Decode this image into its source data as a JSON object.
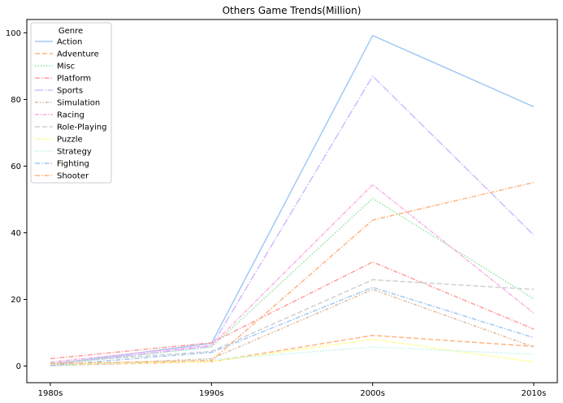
{
  "chart_data": {
    "type": "line",
    "title": "Others Game Trends(Million)",
    "xlabel": "",
    "ylabel": "",
    "categories": [
      "1980s",
      "1990s",
      "2000s",
      "2010s"
    ],
    "ylim": [
      -5,
      104
    ],
    "yticks": [
      0,
      20,
      40,
      60,
      80,
      100
    ],
    "grid": false,
    "legend": {
      "title": "Genre",
      "placement": "top-left"
    },
    "series": [
      {
        "name": "Action",
        "values": [
          0.5,
          6.8,
          99.2,
          77.8
        ],
        "color": "#a1c9f4",
        "dash": ""
      },
      {
        "name": "Adventure",
        "values": [
          0.2,
          1.3,
          9.2,
          5.9
        ],
        "color": "#ffb482",
        "dash": "6 3"
      },
      {
        "name": "Misc",
        "values": [
          0.4,
          5.7,
          50.3,
          20.2
        ],
        "color": "#8de5a1",
        "dash": "1.5 2"
      },
      {
        "name": "Platform",
        "values": [
          2.2,
          7.0,
          31.2,
          11.1
        ],
        "color": "#ff9f9b",
        "dash": "6 2 1.5 2"
      },
      {
        "name": "Sports",
        "values": [
          0.5,
          5.9,
          87.0,
          39.3
        ],
        "color": "#d0bbff",
        "dash": "10 2 1.5 2"
      },
      {
        "name": "Simulation",
        "values": [
          0.1,
          2.2,
          23.0,
          5.7
        ],
        "color": "#debb9b",
        "dash": "4 2 1.5 2 1.5 2"
      },
      {
        "name": "Racing",
        "values": [
          1.2,
          6.2,
          54.4,
          15.9
        ],
        "color": "#fab0e4",
        "dash": "5 1.5 1.5 1.5"
      },
      {
        "name": "Role-Playing",
        "values": [
          1.0,
          4.4,
          25.9,
          23.0
        ],
        "color": "#cfcfcf",
        "dash": "6 3"
      },
      {
        "name": "Puzzle",
        "values": [
          0.5,
          1.3,
          8.0,
          1.2
        ],
        "color": "#fffea3",
        "dash": "8 2"
      },
      {
        "name": "Strategy",
        "values": [
          0.1,
          1.9,
          5.7,
          3.5
        ],
        "color": "#b9f2f0",
        "dash": "1.5 2"
      },
      {
        "name": "Fighting",
        "values": [
          0.2,
          4.1,
          23.6,
          8.5
        ],
        "color": "#a1c9f4",
        "dash": "6 2 1.5 2"
      },
      {
        "name": "Shooter",
        "values": [
          0.7,
          1.6,
          43.8,
          55.1
        ],
        "color": "#ffb482",
        "dash": "6 2 1.5 2"
      }
    ]
  }
}
